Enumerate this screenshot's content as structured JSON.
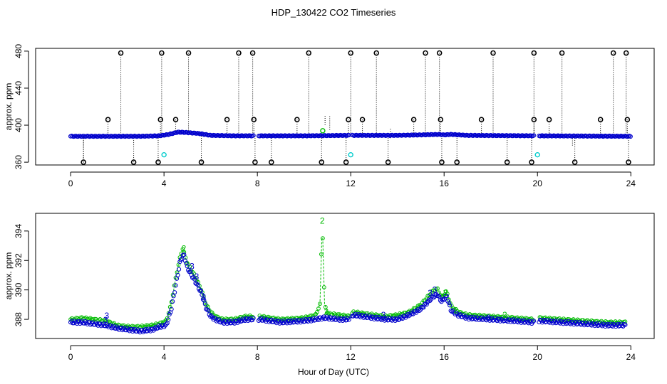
{
  "figure": {
    "title": "HDP_130422  CO2 Timeseries",
    "xlabel": "Hour of Day (UTC)"
  },
  "colors": {
    "blue": "#0000cc",
    "green": "#00bb00",
    "cyan": "#00cccc",
    "black": "#000000"
  },
  "chart_data": [
    {
      "type": "scatter",
      "panel": "top",
      "ylabel": "approx. ppm",
      "xlim": [
        -1.5,
        25
      ],
      "ylim": [
        357,
        483
      ],
      "xticks": [
        0,
        4,
        8,
        12,
        16,
        20,
        24
      ],
      "yticks": [
        360,
        400,
        440,
        480
      ],
      "grid": false,
      "baseline_series": {
        "color": "blue",
        "values": [
          [
            0,
            388
          ],
          [
            3,
            388
          ],
          [
            3.8,
            388.5
          ],
          [
            4.2,
            390
          ],
          [
            4.6,
            392.5
          ],
          [
            5.0,
            392
          ],
          [
            5.5,
            391
          ],
          [
            6.0,
            389
          ],
          [
            7.0,
            388.5
          ],
          [
            8.0,
            388.5
          ],
          [
            10.0,
            388.5
          ],
          [
            12.0,
            389
          ],
          [
            14.0,
            389
          ],
          [
            15.0,
            389.5
          ],
          [
            15.8,
            390
          ],
          [
            16.0,
            389.5
          ],
          [
            16.3,
            390
          ],
          [
            17.0,
            389
          ],
          [
            20.0,
            388.5
          ],
          [
            24.0,
            388
          ]
        ]
      },
      "spikes_high": [
        2.15,
        3.9,
        5.05,
        7.2,
        7.8,
        10.2,
        12.0,
        13.1,
        15.2,
        15.8,
        18.1,
        19.85,
        21.05,
        23.25,
        23.8
      ],
      "spikes_mid": [
        1.6,
        3.85,
        4.5,
        6.7,
        7.85,
        9.7,
        11.9,
        12.5,
        14.7,
        15.85,
        17.6,
        19.85,
        20.5,
        22.7,
        23.85
      ],
      "spikes_low": [
        0.55,
        2.7,
        3.75,
        5.6,
        7.9,
        8.6,
        10.75,
        11.8,
        13.6,
        15.9,
        16.55,
        18.7,
        19.75,
        21.6,
        23.9
      ],
      "spike_levels": {
        "high": 478,
        "mid": 406,
        "low": 360
      },
      "cyan_points": [
        [
          4.0,
          368
        ],
        [
          12.0,
          368
        ],
        [
          20.0,
          368
        ]
      ],
      "green_points": [
        [
          10.8,
          394
        ]
      ],
      "thin_lines": [
        [
          10.9,
          400,
          410
        ],
        [
          11.1,
          395,
          410
        ],
        [
          13.7,
          386,
          396
        ],
        [
          21.5,
          378,
          389
        ]
      ]
    },
    {
      "type": "line",
      "panel": "bottom",
      "ylabel": "approx. ppm",
      "xlim": [
        -1.5,
        25
      ],
      "ylim": [
        386.7,
        395.2
      ],
      "xticks": [
        0,
        4,
        8,
        12,
        16,
        20,
        24
      ],
      "yticks": [
        388,
        390,
        392,
        394
      ],
      "grid": false,
      "series": [
        {
          "color": "green",
          "marker": "2",
          "values": [
            [
              0.0,
              388.0
            ],
            [
              0.5,
              388.1
            ],
            [
              1.0,
              388.0
            ],
            [
              1.5,
              387.9
            ],
            [
              2.0,
              387.6
            ],
            [
              2.5,
              387.5
            ],
            [
              3.0,
              387.5
            ],
            [
              3.5,
              387.6
            ],
            [
              3.8,
              387.7
            ],
            [
              4.1,
              387.9
            ],
            [
              4.3,
              389.0
            ],
            [
              4.5,
              390.8
            ],
            [
              4.7,
              392.3
            ],
            [
              4.8,
              392.8
            ],
            [
              5.0,
              391.8
            ],
            [
              5.3,
              391.0
            ],
            [
              5.6,
              390.0
            ],
            [
              5.8,
              389.0
            ],
            [
              6.0,
              388.5
            ],
            [
              6.2,
              388.2
            ],
            [
              6.5,
              388.0
            ],
            [
              7.0,
              388.0
            ],
            [
              7.5,
              388.2
            ],
            [
              7.8,
              388.2
            ],
            [
              8.1,
              388.2
            ],
            [
              9.0,
              388.0
            ],
            [
              10.0,
              388.1
            ],
            [
              10.5,
              388.3
            ],
            [
              10.68,
              389.0
            ],
            [
              10.78,
              394.7
            ],
            [
              10.88,
              389.0
            ],
            [
              11.0,
              388.4
            ],
            [
              11.5,
              388.3
            ],
            [
              12.0,
              388.2
            ],
            [
              12.1,
              388.5
            ],
            [
              13.0,
              388.3
            ],
            [
              13.5,
              388.2
            ],
            [
              14.0,
              388.3
            ],
            [
              14.5,
              388.5
            ],
            [
              15.0,
              389.0
            ],
            [
              15.5,
              389.9
            ],
            [
              15.7,
              390.1
            ],
            [
              15.9,
              389.5
            ],
            [
              16.1,
              389.9
            ],
            [
              16.3,
              388.9
            ],
            [
              16.6,
              388.5
            ],
            [
              17.0,
              388.3
            ],
            [
              18.0,
              388.2
            ],
            [
              19.0,
              388.1
            ],
            [
              19.8,
              388.0
            ],
            [
              20.1,
              388.1
            ],
            [
              21.0,
              388.0
            ],
            [
              22.0,
              387.9
            ],
            [
              23.0,
              387.8
            ],
            [
              23.8,
              387.8
            ]
          ]
        },
        {
          "color": "blue",
          "marker": "3",
          "values": [
            [
              0.0,
              387.8
            ],
            [
              0.5,
              387.8
            ],
            [
              1.0,
              387.7
            ],
            [
              1.5,
              387.6
            ],
            [
              2.0,
              387.4
            ],
            [
              2.5,
              387.3
            ],
            [
              3.0,
              387.2
            ],
            [
              3.5,
              387.3
            ],
            [
              3.8,
              387.5
            ],
            [
              4.1,
              387.6
            ],
            [
              4.3,
              388.6
            ],
            [
              4.5,
              390.3
            ],
            [
              4.7,
              392.0
            ],
            [
              4.85,
              392.4
            ],
            [
              5.0,
              391.5
            ],
            [
              5.3,
              390.7
            ],
            [
              5.6,
              389.8
            ],
            [
              5.8,
              388.8
            ],
            [
              6.0,
              388.2
            ],
            [
              6.2,
              388.0
            ],
            [
              6.5,
              387.8
            ],
            [
              7.0,
              387.8
            ],
            [
              7.5,
              388.0
            ],
            [
              7.8,
              388.0
            ],
            [
              8.1,
              388.0
            ],
            [
              9.0,
              387.8
            ],
            [
              10.0,
              387.9
            ],
            [
              10.5,
              388.0
            ],
            [
              10.78,
              388.1
            ],
            [
              11.0,
              388.1
            ],
            [
              11.5,
              388.0
            ],
            [
              12.0,
              388.0
            ],
            [
              12.1,
              388.3
            ],
            [
              13.0,
              388.1
            ],
            [
              13.5,
              388.0
            ],
            [
              14.0,
              388.0
            ],
            [
              14.5,
              388.3
            ],
            [
              15.0,
              388.7
            ],
            [
              15.5,
              389.5
            ],
            [
              15.7,
              389.7
            ],
            [
              15.9,
              389.2
            ],
            [
              16.1,
              389.6
            ],
            [
              16.3,
              388.6
            ],
            [
              16.6,
              388.3
            ],
            [
              17.0,
              388.1
            ],
            [
              18.0,
              388.0
            ],
            [
              19.0,
              387.9
            ],
            [
              19.8,
              387.8
            ],
            [
              20.1,
              387.9
            ],
            [
              21.0,
              387.8
            ],
            [
              22.0,
              387.7
            ],
            [
              23.0,
              387.6
            ],
            [
              23.8,
              387.6
            ]
          ]
        }
      ],
      "labeled_points": [
        {
          "x": 1.55,
          "y": 388.25,
          "label": "3",
          "color": "blue"
        },
        {
          "x": 1.5,
          "y": 387.95,
          "label": "3",
          "color": "blue"
        },
        {
          "x": 10.78,
          "y": 394.7,
          "label": "2",
          "color": "green"
        },
        {
          "x": 10.95,
          "y": 388.5,
          "label": "2",
          "color": "green"
        },
        {
          "x": 4.85,
          "y": 392.8,
          "label": "2",
          "color": "green"
        },
        {
          "x": 5.2,
          "y": 391.6,
          "label": "3",
          "color": "blue"
        },
        {
          "x": 5.4,
          "y": 390.9,
          "label": "3",
          "color": "blue"
        },
        {
          "x": 5.7,
          "y": 389.5,
          "label": "3",
          "color": "blue"
        },
        {
          "x": 15.4,
          "y": 389.8,
          "label": "3",
          "color": "blue"
        },
        {
          "x": 15.6,
          "y": 390.0,
          "label": "3",
          "color": "blue"
        },
        {
          "x": 16.05,
          "y": 389.8,
          "label": "3",
          "color": "green"
        },
        {
          "x": 16.5,
          "y": 388.6,
          "label": "2",
          "color": "green"
        },
        {
          "x": 18.6,
          "y": 388.3,
          "label": "2",
          "color": "green"
        },
        {
          "x": 17.9,
          "y": 388.1,
          "label": "3",
          "color": "blue"
        },
        {
          "x": 13.4,
          "y": 388.3,
          "label": "3",
          "color": "blue"
        }
      ]
    }
  ]
}
